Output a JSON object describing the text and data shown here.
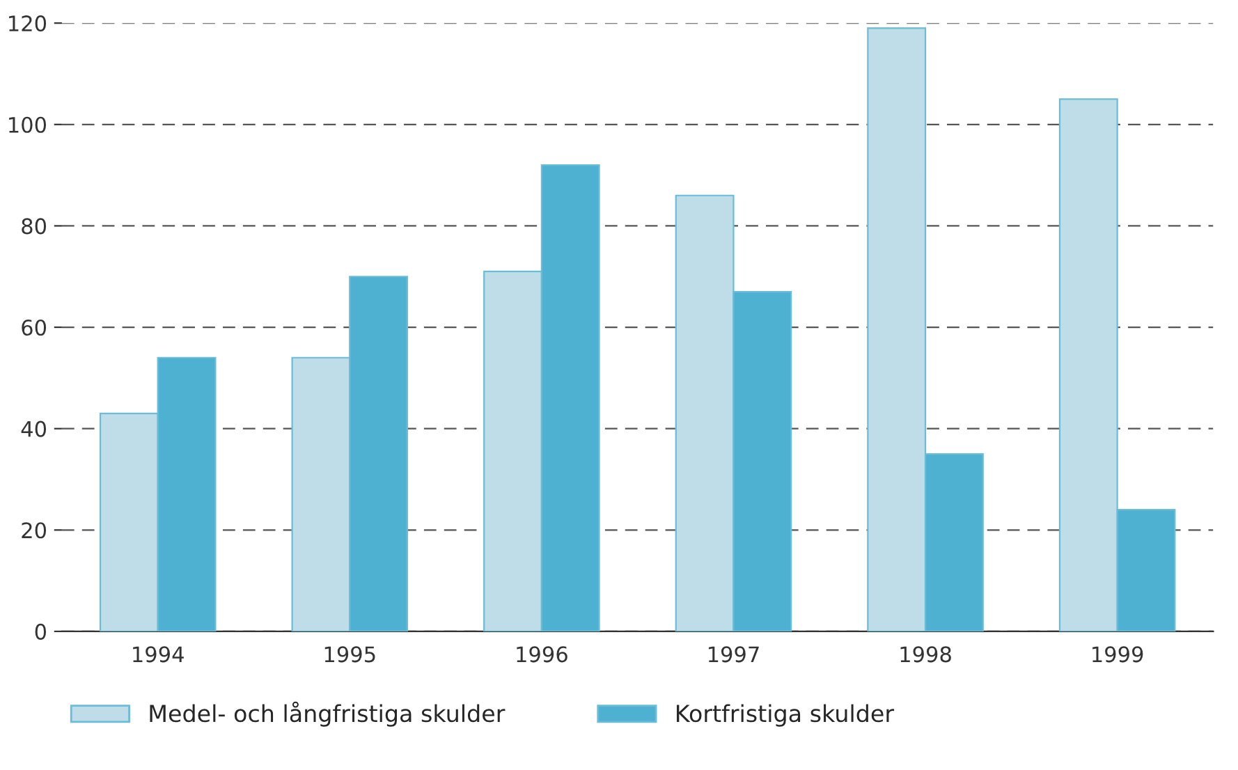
{
  "chart_data": {
    "type": "bar",
    "categories": [
      "1994",
      "1995",
      "1996",
      "1997",
      "1998",
      "1999"
    ],
    "series": [
      {
        "name": "Medel- och långfristiga skulder",
        "color": "#bfdde8",
        "values": [
          43,
          54,
          71,
          86,
          119,
          105
        ]
      },
      {
        "name": "Kortfristiga skulder",
        "color": "#4fb1d1",
        "values": [
          54,
          70,
          92,
          67,
          35,
          24
        ]
      }
    ],
    "ylim": [
      0,
      120
    ],
    "yticks": [
      0,
      20,
      40,
      60,
      80,
      100,
      120
    ],
    "grid": "y",
    "legend": "bottom"
  }
}
